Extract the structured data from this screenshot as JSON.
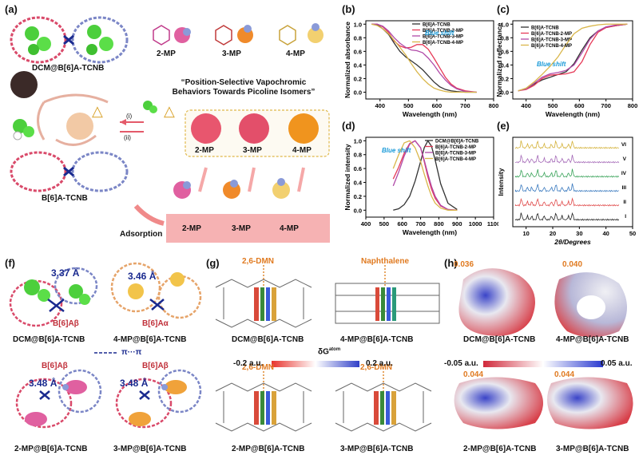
{
  "panels": {
    "a": {
      "label": "(a)",
      "complex_top": "DCM@B[6]A-TCNB",
      "host": "B[6]A-TCNB",
      "isomers": [
        "2-MP",
        "3-MP",
        "4-MP"
      ],
      "title_line1": "“Position-Selective Vapochromic",
      "title_line2": "Behaviors Towards Picoline Isomers”",
      "step_i": "(i)",
      "step_ii": "(ii)",
      "powders": [
        "2-MP",
        "3-MP",
        "4-MP"
      ],
      "adsorption": "Adsorption",
      "bar_labels": [
        "2-MP",
        "3-MP",
        "4-MP"
      ],
      "colors": {
        "mp2": "#e8566e",
        "mp3": "#e34f6a",
        "mp4": "#f0941e",
        "bar": "#f6b2b3"
      }
    },
    "b": {
      "label": "(b)",
      "note": "Blue shift"
    },
    "c": {
      "label": "(c)",
      "note": "Blue shift"
    },
    "d": {
      "label": "(d)",
      "note": "Blue shift"
    },
    "e": {
      "label": "(e)",
      "roman": [
        "VI",
        "V",
        "IV",
        "III",
        "II",
        "I"
      ]
    },
    "f": {
      "label": "(f)",
      "dist1": "3.37 Å",
      "dist2": "3.46 Å",
      "dist3": "3.48 Å",
      "dist4": "3.48 Å",
      "host1": "B[6]Aβ",
      "host2": "B[6]Aα",
      "host3": "B[6]Aβ",
      "host4": "B[6]Aβ",
      "pi": "π···π",
      "cap1": "DCM@B[6]A-TCNB",
      "cap2": "4-MP@B[6]A-TCNB",
      "cap3": "2-MP@B[6]A-TCNB",
      "cap4": "3-MP@B[6]A-TCNB"
    },
    "g": {
      "label": "(g)",
      "tag1": "2,6-DMN",
      "tag2": "Naphthalene",
      "tag3": "2,6-DMN",
      "tag4": "2,6-DMN",
      "cap1": "DCM@B[6]A-TCNB",
      "cap2": "4-MP@B[6]A-TCNB",
      "cap3": "2-MP@B[6]A-TCNB",
      "cap4": "3-MP@B[6]A-TCNB",
      "scale_title": "δG",
      "scale_sup": "atom",
      "scale_min": "-0.2 a.u.",
      "scale_max": "0.2 a.u."
    },
    "h": {
      "label": "(h)",
      "v1": "0.036",
      "v2": "0.040",
      "v3": "0.044",
      "v4": "0.044",
      "cap1": "DCM@B[6]A-TCNB",
      "cap2": "4-MP@B[6]A-TCNB",
      "cap3": "2-MP@B[6]A-TCNB",
      "cap4": "3-MP@B[6]A-TCNB",
      "scale_min": "-0.05 a.u.",
      "scale_max": "0.05 a.u."
    }
  },
  "chart_data": [
    {
      "type": "line",
      "panel": "b",
      "xlabel": "Wavelength (nm)",
      "ylabel": "Normalized absorbance",
      "xlim": [
        350,
        800
      ],
      "ylim": [
        -0.1,
        1.05
      ],
      "xticks": [
        400,
        500,
        600,
        700,
        800
      ],
      "yticks": [
        0.0,
        0.2,
        0.4,
        0.6,
        0.8,
        1.0
      ],
      "series": [
        {
          "name": "B[6]A-TCNB",
          "color": "#333333",
          "x": [
            370,
            390,
            410,
            430,
            450,
            470,
            490,
            510,
            530,
            550,
            570,
            590,
            610,
            630,
            650,
            670,
            700,
            740
          ],
          "values": [
            1.0,
            0.99,
            0.93,
            0.85,
            0.72,
            0.6,
            0.52,
            0.46,
            0.4,
            0.33,
            0.24,
            0.15,
            0.08,
            0.04,
            0.02,
            0.01,
            0.0,
            0.0
          ]
        },
        {
          "name": "B[6]A-TCNB-2-MP",
          "color": "#e63a58",
          "x": [
            370,
            390,
            410,
            430,
            450,
            470,
            490,
            510,
            530,
            550,
            570,
            590,
            610,
            630,
            650,
            670,
            700,
            740
          ],
          "values": [
            1.0,
            1.0,
            0.96,
            0.88,
            0.75,
            0.68,
            0.65,
            0.66,
            0.7,
            0.7,
            0.63,
            0.5,
            0.36,
            0.22,
            0.12,
            0.06,
            0.02,
            0.0
          ]
        },
        {
          "name": "B[6]A-TCNB-3-MP",
          "color": "#b04aa8",
          "x": [
            370,
            390,
            410,
            430,
            450,
            470,
            490,
            510,
            530,
            550,
            570,
            590,
            610,
            630,
            650,
            670,
            700,
            740
          ],
          "values": [
            1.0,
            1.0,
            0.97,
            0.9,
            0.8,
            0.72,
            0.66,
            0.62,
            0.61,
            0.58,
            0.5,
            0.4,
            0.28,
            0.18,
            0.1,
            0.05,
            0.01,
            0.0
          ]
        },
        {
          "name": "B[6]A-TCNB-4-MP",
          "color": "#d9b64a",
          "x": [
            370,
            390,
            410,
            430,
            450,
            470,
            490,
            510,
            530,
            550,
            570,
            590,
            610,
            630,
            650,
            670,
            700,
            740
          ],
          "values": [
            1.0,
            0.98,
            0.93,
            0.86,
            0.76,
            0.66,
            0.55,
            0.42,
            0.3,
            0.2,
            0.12,
            0.06,
            0.03,
            0.01,
            0.0,
            0.0,
            0.0,
            0.0
          ]
        }
      ]
    },
    {
      "type": "line",
      "panel": "c",
      "xlabel": "Wavelength (nm)",
      "ylabel": "Normalized reflectance",
      "xlim": [
        350,
        800
      ],
      "ylim": [
        -0.1,
        1.05
      ],
      "xticks": [
        400,
        500,
        600,
        700,
        800
      ],
      "yticks": [
        0.0,
        0.2,
        0.4,
        0.6,
        0.8,
        1.0
      ],
      "series": [
        {
          "name": "B[6]A-TCNB",
          "color": "#333333",
          "x": [
            370,
            400,
            430,
            460,
            490,
            520,
            550,
            580,
            610,
            640,
            670,
            700,
            740,
            780
          ],
          "values": [
            0.02,
            0.05,
            0.12,
            0.18,
            0.22,
            0.26,
            0.3,
            0.42,
            0.62,
            0.8,
            0.9,
            0.95,
            0.98,
            1.0
          ]
        },
        {
          "name": "B[6]A-TCNB-2-MP",
          "color": "#e63a58",
          "x": [
            370,
            400,
            430,
            460,
            490,
            520,
            550,
            580,
            610,
            640,
            670,
            700,
            740,
            780
          ],
          "values": [
            0.02,
            0.04,
            0.1,
            0.2,
            0.25,
            0.26,
            0.27,
            0.3,
            0.45,
            0.7,
            0.88,
            0.95,
            0.98,
            1.0
          ]
        },
        {
          "name": "B[6]A-TCNB-3-MP",
          "color": "#b04aa8",
          "x": [
            370,
            400,
            430,
            460,
            490,
            520,
            550,
            580,
            610,
            640,
            670,
            700,
            740,
            780
          ],
          "values": [
            0.02,
            0.05,
            0.13,
            0.22,
            0.27,
            0.29,
            0.32,
            0.4,
            0.58,
            0.78,
            0.9,
            0.96,
            0.99,
            1.0
          ]
        },
        {
          "name": "B[6]A-TCNB-4-MP",
          "color": "#d9b64a",
          "x": [
            370,
            400,
            430,
            460,
            490,
            520,
            550,
            580,
            610,
            640,
            670,
            700,
            740,
            780
          ],
          "values": [
            0.02,
            0.06,
            0.15,
            0.26,
            0.38,
            0.52,
            0.7,
            0.86,
            0.94,
            0.97,
            0.99,
            1.0,
            1.0,
            1.0
          ]
        }
      ]
    },
    {
      "type": "line",
      "panel": "d",
      "xlabel": "Wavelength (nm)",
      "ylabel": "Normalized intensity",
      "xlim": [
        400,
        1100
      ],
      "ylim": [
        -0.1,
        1.05
      ],
      "xticks": [
        400,
        500,
        600,
        700,
        800,
        900,
        1000,
        1100
      ],
      "yticks": [
        0.0,
        0.2,
        0.4,
        0.6,
        0.8,
        1.0
      ],
      "series": [
        {
          "name": "DCM@B[6]A-TCNB",
          "color": "#333333",
          "x": [
            550,
            580,
            610,
            640,
            670,
            700,
            720,
            740,
            760,
            780,
            810,
            850,
            900
          ],
          "values": [
            0.0,
            0.02,
            0.08,
            0.2,
            0.42,
            0.7,
            0.9,
            1.0,
            0.92,
            0.72,
            0.38,
            0.1,
            0.01
          ]
        },
        {
          "name": "B[6]A-TCNB-2-MP",
          "color": "#e63a58",
          "x": [
            550,
            580,
            610,
            640,
            670,
            700,
            720,
            740,
            760,
            780,
            810,
            850,
            900
          ],
          "values": [
            0.45,
            0.62,
            0.82,
            0.96,
            1.0,
            0.9,
            0.7,
            0.48,
            0.3,
            0.17,
            0.06,
            0.01,
            0.0
          ]
        },
        {
          "name": "B[6]A-TCNB-3-MP",
          "color": "#b04aa8",
          "x": [
            550,
            580,
            610,
            640,
            670,
            700,
            720,
            740,
            760,
            780,
            810,
            850,
            900
          ],
          "values": [
            0.35,
            0.55,
            0.78,
            0.95,
            1.0,
            0.9,
            0.72,
            0.52,
            0.34,
            0.2,
            0.07,
            0.01,
            0.0
          ]
        },
        {
          "name": "B[6]A-TCNB-4-MP",
          "color": "#d9b64a",
          "x": [
            550,
            580,
            610,
            640,
            670,
            700,
            720,
            740,
            760,
            780,
            810,
            850,
            900
          ],
          "values": [
            0.6,
            0.8,
            0.97,
            1.0,
            0.9,
            0.7,
            0.52,
            0.35,
            0.2,
            0.1,
            0.03,
            0.0,
            0.0
          ]
        }
      ]
    },
    {
      "type": "line",
      "panel": "e",
      "xlabel": "2θ/Degrees",
      "ylabel": "Intensity",
      "xlim": [
        5,
        50
      ],
      "xticks": [
        10,
        20,
        30,
        40,
        50
      ],
      "series": [
        {
          "name": "I",
          "color": "#222222"
        },
        {
          "name": "II",
          "color": "#e04a4a"
        },
        {
          "name": "III",
          "color": "#3a7abf"
        },
        {
          "name": "IV",
          "color": "#3aa35a"
        },
        {
          "name": "V",
          "color": "#a56ab8"
        },
        {
          "name": "VI",
          "color": "#d4b23a"
        }
      ]
    }
  ]
}
